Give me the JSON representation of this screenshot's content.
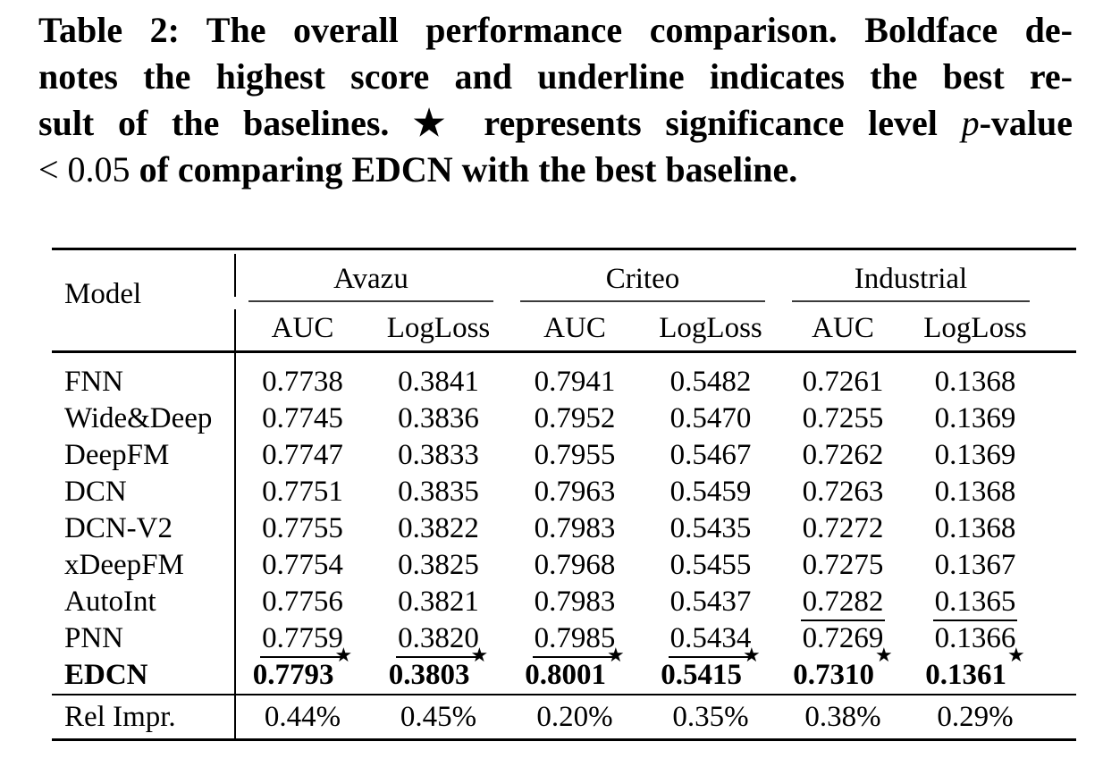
{
  "caption": {
    "line1": "Table 2: The overall performance comparison. Boldface de-",
    "line2": "notes the highest score and underline indicates the best re-",
    "line3_pre": "sult of the baselines. ★ represents significance level ",
    "line3_p": "p",
    "line3_post": "-value",
    "line4_math": "< 0.05",
    "line4_rest": " of comparing EDCN with the best baseline."
  },
  "table": {
    "model_header": "Model",
    "star": "★",
    "groups": [
      {
        "label": "Avazu"
      },
      {
        "label": "Criteo"
      },
      {
        "label": "Industrial"
      }
    ],
    "metric_headers": [
      "AUC",
      "LogLoss",
      "AUC",
      "LogLoss",
      "AUC",
      "LogLoss"
    ],
    "rows": [
      {
        "model": "FNN",
        "values": [
          "0.7738",
          "0.3841",
          "0.7941",
          "0.5482",
          "0.7261",
          "0.1368"
        ]
      },
      {
        "model": "Wide&Deep",
        "values": [
          "0.7745",
          "0.3836",
          "0.7952",
          "0.5470",
          "0.7255",
          "0.1369"
        ]
      },
      {
        "model": "DeepFM",
        "values": [
          "0.7747",
          "0.3833",
          "0.7955",
          "0.5467",
          "0.7262",
          "0.1369"
        ]
      },
      {
        "model": "DCN",
        "values": [
          "0.7751",
          "0.3835",
          "0.7963",
          "0.5459",
          "0.7263",
          "0.1368"
        ]
      },
      {
        "model": "DCN-V2",
        "values": [
          "0.7755",
          "0.3822",
          "0.7983",
          "0.5435",
          "0.7272",
          "0.1368"
        ]
      },
      {
        "model": "xDeepFM",
        "values": [
          "0.7754",
          "0.3825",
          "0.7968",
          "0.5455",
          "0.7275",
          "0.1367"
        ]
      },
      {
        "model": "AutoInt",
        "values": [
          "0.7756",
          "0.3821",
          "0.7983",
          "0.5437",
          "0.7282",
          "0.1365"
        ],
        "underlined_cols": [
          4,
          5
        ]
      },
      {
        "model": "PNN",
        "values": [
          "0.7759",
          "0.3820",
          "0.7985",
          "0.5434",
          "0.7269",
          "0.1366"
        ],
        "underlined_cols": [
          0,
          1,
          2,
          3
        ]
      },
      {
        "model": "EDCN",
        "values": [
          "0.7793",
          "0.3803",
          "0.8001",
          "0.5415",
          "0.7310",
          "0.1361"
        ],
        "bold": true,
        "starred": true
      }
    ],
    "rel_impr": {
      "label": "Rel Impr.",
      "values": [
        "0.44%",
        "0.45%",
        "0.20%",
        "0.35%",
        "0.38%",
        "0.29%"
      ]
    }
  }
}
